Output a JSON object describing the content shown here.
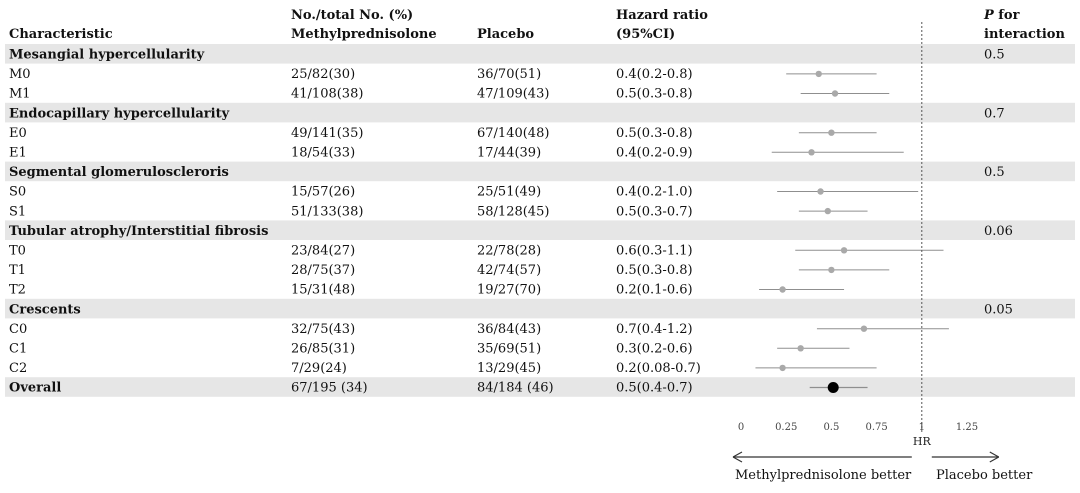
{
  "chart_data": {
    "type": "forest",
    "columns": {
      "characteristic": "Characteristic",
      "counts_top": "No./total No. (%)",
      "methylprednisolone": "Methylprednisolone",
      "placebo": "Placebo",
      "hr_top": "Hazard ratio",
      "hr_ci": "(95%CI)",
      "p_top_italic": "P",
      "p_top_rest": " for",
      "p_bottom": "interaction"
    },
    "rows": [
      {
        "kind": "group",
        "label": "Mesangial hypercellularity",
        "p": "0.5"
      },
      {
        "kind": "item",
        "label": "M0",
        "methyl": "25/82(30)",
        "placebo": "36/70(51)",
        "hr_text": "0.4(0.2-0.8)",
        "hr": 0.43,
        "lo": 0.25,
        "hi": 0.75
      },
      {
        "kind": "item",
        "label": "M1",
        "methyl": "41/108(38)",
        "placebo": "47/109(43)",
        "hr_text": "0.5(0.3-0.8)",
        "hr": 0.52,
        "lo": 0.33,
        "hi": 0.82
      },
      {
        "kind": "group",
        "label": "Endocapillary hypercellularity",
        "p": "0.7"
      },
      {
        "kind": "item",
        "label": "E0",
        "methyl": "49/141(35)",
        "placebo": "67/140(48)",
        "hr_text": "0.5(0.3-0.8)",
        "hr": 0.5,
        "lo": 0.32,
        "hi": 0.75
      },
      {
        "kind": "item",
        "label": "E1",
        "methyl": "18/54(33)",
        "placebo": "17/44(39)",
        "hr_text": "0.4(0.2-0.9)",
        "hr": 0.39,
        "lo": 0.17,
        "hi": 0.9
      },
      {
        "kind": "group",
        "label": "Segmental glomeruloscleroris",
        "p": "0.5"
      },
      {
        "kind": "item",
        "label": "S0",
        "methyl": "15/57(26)",
        "placebo": "25/51(49)",
        "hr_text": "0.4(0.2-1.0)",
        "hr": 0.44,
        "lo": 0.2,
        "hi": 0.98
      },
      {
        "kind": "item",
        "label": "S1",
        "methyl": "51/133(38)",
        "placebo": "58/128(45)",
        "hr_text": "0.5(0.3-0.7)",
        "hr": 0.48,
        "lo": 0.32,
        "hi": 0.7
      },
      {
        "kind": "group",
        "label": "Tubular atrophy/Interstitial fibrosis",
        "p": "0.06"
      },
      {
        "kind": "item",
        "label": "T0",
        "methyl": "23/84(27)",
        "placebo": "22/78(28)",
        "hr_text": "0.6(0.3-1.1)",
        "hr": 0.57,
        "lo": 0.3,
        "hi": 1.12
      },
      {
        "kind": "item",
        "label": "T1",
        "methyl": "28/75(37)",
        "placebo": "42/74(57)",
        "hr_text": "0.5(0.3-0.8)",
        "hr": 0.5,
        "lo": 0.32,
        "hi": 0.82
      },
      {
        "kind": "item",
        "label": "T2",
        "methyl": "15/31(48)",
        "placebo": "19/27(70)",
        "hr_text": "0.2(0.1-0.6)",
        "hr": 0.23,
        "lo": 0.1,
        "hi": 0.57
      },
      {
        "kind": "group",
        "label": "Crescents",
        "p": "0.05"
      },
      {
        "kind": "item",
        "label": "C0",
        "methyl": "32/75(43)",
        "placebo": "36/84(43)",
        "hr_text": "0.7(0.4-1.2)",
        "hr": 0.68,
        "lo": 0.42,
        "hi": 1.15
      },
      {
        "kind": "item",
        "label": "C1",
        "methyl": "26/85(31)",
        "placebo": "35/69(51)",
        "hr_text": "0.3(0.2-0.6)",
        "hr": 0.33,
        "lo": 0.2,
        "hi": 0.6
      },
      {
        "kind": "item",
        "label": "C2",
        "methyl": "7/29(24)",
        "placebo": "13/29(45)",
        "hr_text": "0.2(0.08-0.7)",
        "hr": 0.23,
        "lo": 0.08,
        "hi": 0.75
      },
      {
        "kind": "overall",
        "label": "Overall",
        "methyl": "67/195 (34)",
        "placebo": "84/184 (46)",
        "hr_text": "0.5(0.4-0.7)",
        "hr": 0.51,
        "lo": 0.38,
        "hi": 0.7
      }
    ],
    "axis": {
      "label": "HR",
      "xlim": [
        0,
        1.25
      ],
      "ticks": [
        0,
        0.25,
        0.5,
        0.75,
        1,
        1.25
      ],
      "reference": 1
    },
    "direction": {
      "left": "Methylprednisolone better",
      "right": "Placebo better"
    },
    "colors": {
      "group_band": "#e6e6e6",
      "point": "#a9a9a9",
      "ci_line": "#8f8f8f",
      "overall_point": "#000000"
    },
    "grid": false
  }
}
